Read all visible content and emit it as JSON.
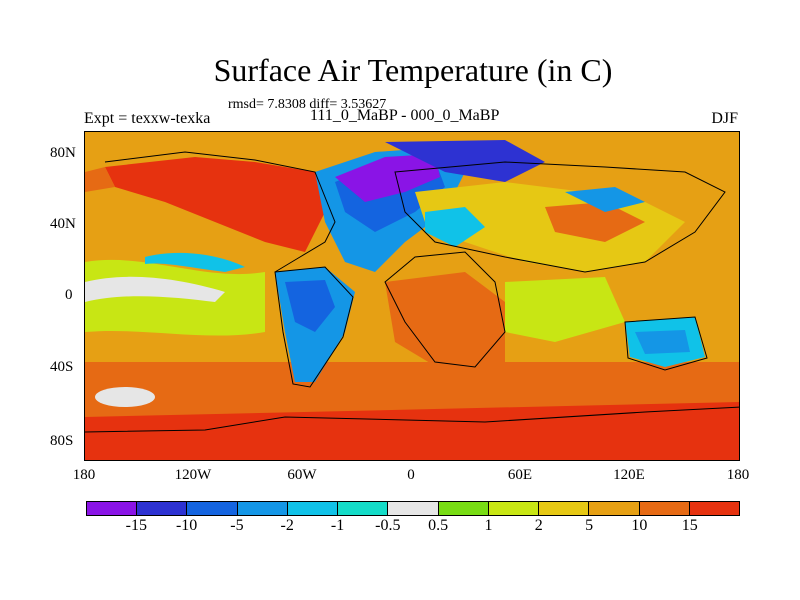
{
  "title": "Surface Air Temperature (in C)",
  "stats": "rmsd= 7.8308 diff= 3.53627",
  "expt_label": "Expt = texxw-texka",
  "case_label": "111_0_MaBP - 000_0_MaBP",
  "season_label": "DJF",
  "lat_labels": [
    "80N",
    "40N",
    "0",
    "40S",
    "80S"
  ],
  "lon_labels": [
    "180",
    "120W",
    "60W",
    "0",
    "60E",
    "120E",
    "180"
  ],
  "colorbar": {
    "colors": [
      "#8a14e6",
      "#2d32d2",
      "#1464e0",
      "#1496e6",
      "#10c2e8",
      "#14dcc8",
      "#e6e6e6",
      "#78dc14",
      "#c8e614",
      "#e6c814",
      "#e6a014",
      "#e66a14",
      "#e6320f"
    ],
    "labels": [
      "-15",
      "-10",
      "-5",
      "-2",
      "-1",
      "-0.5",
      "0.5",
      "1",
      "2",
      "5",
      "10",
      "15"
    ]
  }
}
